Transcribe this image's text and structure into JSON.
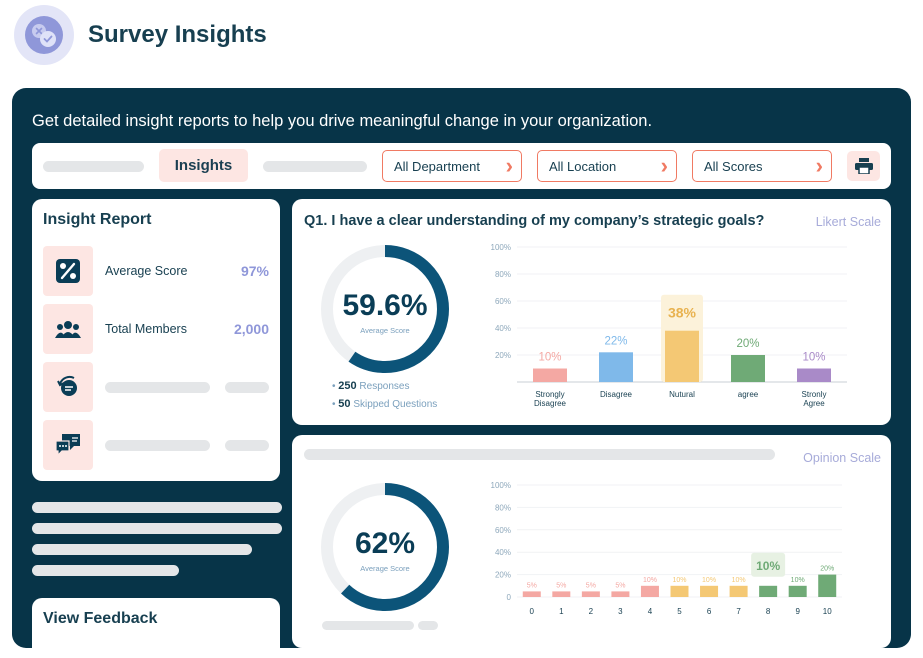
{
  "header": {
    "title": "Survey Insights",
    "logo_icon": "survey-check-icon"
  },
  "tagline": "Get detailed insight reports to help you drive meaningful change in your organization.",
  "filters": {
    "tab_label": "Insights",
    "department": "All Department",
    "location": "All Location",
    "scores": "All Scores",
    "print_icon": "printer-icon"
  },
  "insight_report": {
    "title": "Insight Report",
    "items": [
      {
        "icon": "percent-icon",
        "label": "Average Score",
        "value": "97%"
      },
      {
        "icon": "team-icon",
        "label": "Total Members",
        "value": "2,000"
      }
    ]
  },
  "q1": {
    "title": "Q1. I have a clear understanding of my company’s strategic goals?",
    "scale": "Likert Scale",
    "average": "59.6%",
    "average_label": "Average Score",
    "responses_count": "250",
    "responses_label": "Responses",
    "skipped_count": "50",
    "skipped_label": "Skipped  Questions"
  },
  "q2": {
    "scale": "Opinion Scale",
    "average": "62%",
    "average_label": "Average Score"
  },
  "view_feedback": {
    "title": "View Feedback"
  },
  "chart_data": [
    {
      "type": "bar",
      "yticks": [
        "100%",
        "80%",
        "60%",
        "40%",
        "20%"
      ],
      "ylim": [
        0,
        100
      ],
      "categories": [
        [
          "Strongly",
          "Disagree"
        ],
        [
          "Disagree"
        ],
        [
          "Nutural"
        ],
        [
          "agree"
        ],
        [
          "Stronly",
          "Agree"
        ]
      ],
      "values": [
        10,
        22,
        38,
        20,
        10
      ],
      "labels": [
        "10%",
        "22%",
        "38%",
        "20%",
        "10%"
      ],
      "colors": [
        "#f4a8a3",
        "#7fb9ea",
        "#f4c874",
        "#6faa76",
        "#a98ac8"
      ],
      "label_colors": [
        "#f4a8a3",
        "#7fb9ea",
        "#e8b24f",
        "#6faa76",
        "#a98ac8"
      ],
      "highlight_index": 2
    },
    {
      "type": "bar",
      "yticks": [
        "100%",
        "80%",
        "60%",
        "40%",
        "20%",
        "0"
      ],
      "ylim": [
        0,
        100
      ],
      "categories": [
        "0",
        "1",
        "2",
        "3",
        "4",
        "5",
        "6",
        "7",
        "8",
        "9",
        "10"
      ],
      "values": [
        5,
        5,
        5,
        5,
        10,
        10,
        10,
        10,
        10,
        10,
        20
      ],
      "labels": [
        "5%",
        "5%",
        "5%",
        "5%",
        "10%",
        "10%",
        "10%",
        "10%",
        "10%",
        "10%",
        "20%"
      ],
      "colors": [
        "#f4a8a3",
        "#f4a8a3",
        "#f4a8a3",
        "#f4a8a3",
        "#f4a8a3",
        "#f4c874",
        "#f4c874",
        "#f4c874",
        "#6faa76",
        "#6faa76",
        "#6faa76"
      ],
      "highlight_index": 8
    }
  ]
}
